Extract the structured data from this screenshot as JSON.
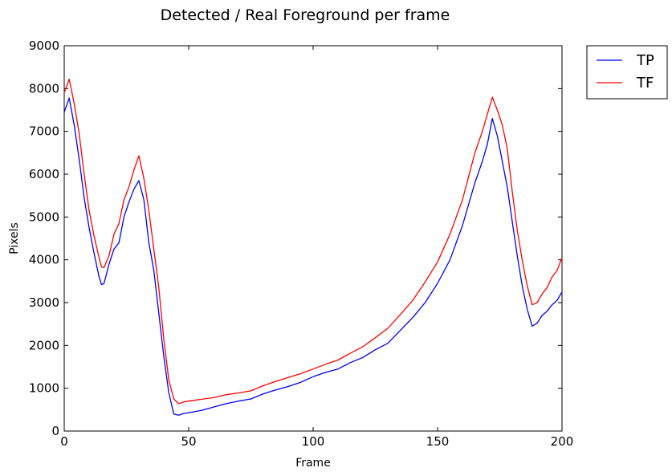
{
  "chart_data": {
    "type": "line",
    "title": "Detected / Real Foreground per frame",
    "xlabel": "Frame",
    "ylabel": "Pixels",
    "xlim": [
      0,
      200
    ],
    "ylim": [
      0,
      9000
    ],
    "xticks": [
      "0",
      "50",
      "100",
      "150",
      "200"
    ],
    "yticks": [
      "0",
      "1000",
      "2000",
      "3000",
      "4000",
      "5000",
      "6000",
      "7000",
      "8000",
      "9000"
    ],
    "grid": false,
    "legend_position": "outside-top-right",
    "x": [
      0,
      2,
      4,
      6,
      8,
      10,
      12,
      14,
      15,
      16,
      18,
      20,
      22,
      24,
      26,
      28,
      30,
      32,
      34,
      36,
      38,
      40,
      42,
      44,
      46,
      48,
      50,
      55,
      60,
      65,
      70,
      75,
      80,
      85,
      90,
      95,
      100,
      105,
      110,
      115,
      120,
      125,
      130,
      135,
      140,
      145,
      150,
      155,
      160,
      165,
      168,
      170,
      172,
      174,
      176,
      178,
      180,
      182,
      184,
      186,
      188,
      190,
      192,
      194,
      196,
      198,
      200
    ],
    "series": [
      {
        "name": "TP",
        "color": "#0000ff",
        "values": [
          7450,
          7780,
          7150,
          6350,
          5450,
          4750,
          4150,
          3600,
          3420,
          3450,
          3900,
          4250,
          4400,
          5000,
          5350,
          5650,
          5850,
          5400,
          4400,
          3750,
          2750,
          1750,
          900,
          400,
          370,
          410,
          430,
          480,
          560,
          640,
          700,
          750,
          870,
          960,
          1040,
          1140,
          1270,
          1370,
          1450,
          1600,
          1720,
          1900,
          2050,
          2350,
          2650,
          3000,
          3450,
          4000,
          4800,
          5800,
          6300,
          6700,
          7300,
          6900,
          6300,
          5700,
          4900,
          4100,
          3400,
          2850,
          2450,
          2520,
          2700,
          2800,
          2950,
          3050,
          3250
        ]
      },
      {
        "name": "TF",
        "color": "#ff0000",
        "values": [
          7900,
          8220,
          7650,
          6950,
          6000,
          5150,
          4550,
          4050,
          3830,
          3820,
          4100,
          4600,
          4850,
          5400,
          5700,
          6100,
          6430,
          5900,
          5150,
          4250,
          3350,
          2150,
          1200,
          750,
          640,
          680,
          700,
          740,
          780,
          850,
          890,
          940,
          1060,
          1160,
          1250,
          1340,
          1450,
          1560,
          1660,
          1820,
          1970,
          2180,
          2400,
          2720,
          3050,
          3480,
          3950,
          4600,
          5400,
          6500,
          7000,
          7400,
          7800,
          7500,
          7150,
          6600,
          5600,
          4700,
          4000,
          3400,
          2950,
          3000,
          3200,
          3350,
          3600,
          3750,
          4050
        ]
      }
    ]
  }
}
